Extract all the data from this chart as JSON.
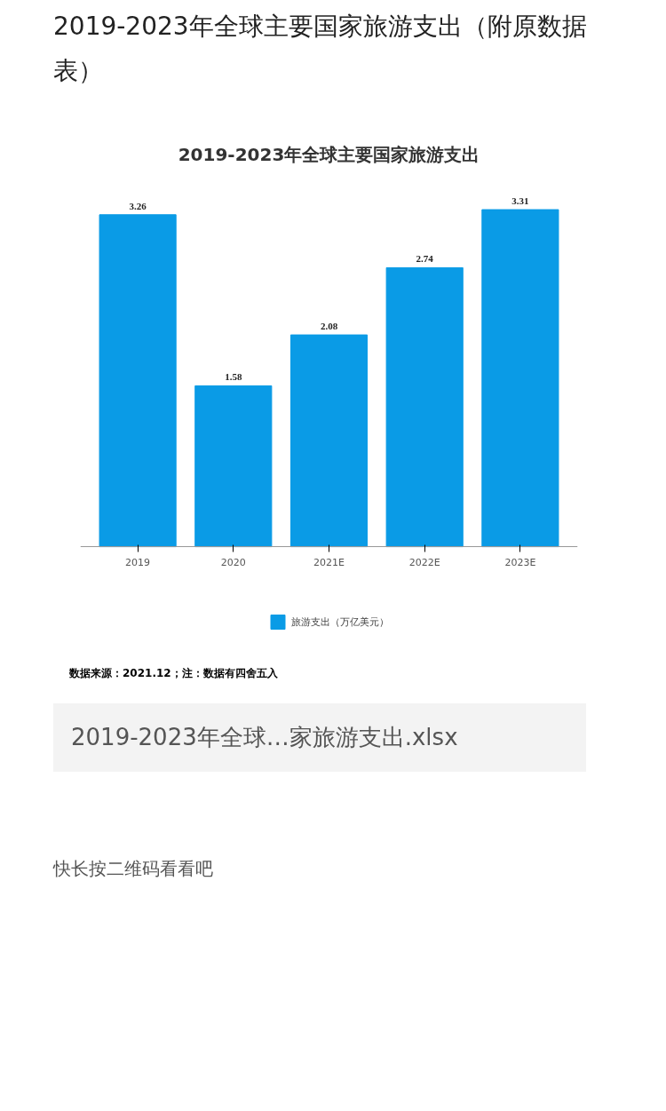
{
  "chart_data": {
    "type": "bar",
    "title": "2019-2023年全球主要国家旅游支出（附原数据表）",
    "subtitle": "2019-2023年全球主要国家旅游支出",
    "categories": [
      "2019",
      "2020",
      "2021E",
      "2022E",
      "2023E"
    ],
    "series": [
      {
        "name": "旅游支出（万亿美元）",
        "color": "#0a9be6",
        "values": [
          3.26,
          1.58,
          2.08,
          2.74,
          3.31
        ]
      }
    ],
    "data_labels": true,
    "grid": false,
    "legend": "bottom",
    "tick_labels": "x",
    "annotations": [
      "数据来源：2021.12；注：数据有四舍五入",
      "2019-2023年全球…家旅游支出.xlsx",
      "快长按二维码看看吧"
    ]
  }
}
